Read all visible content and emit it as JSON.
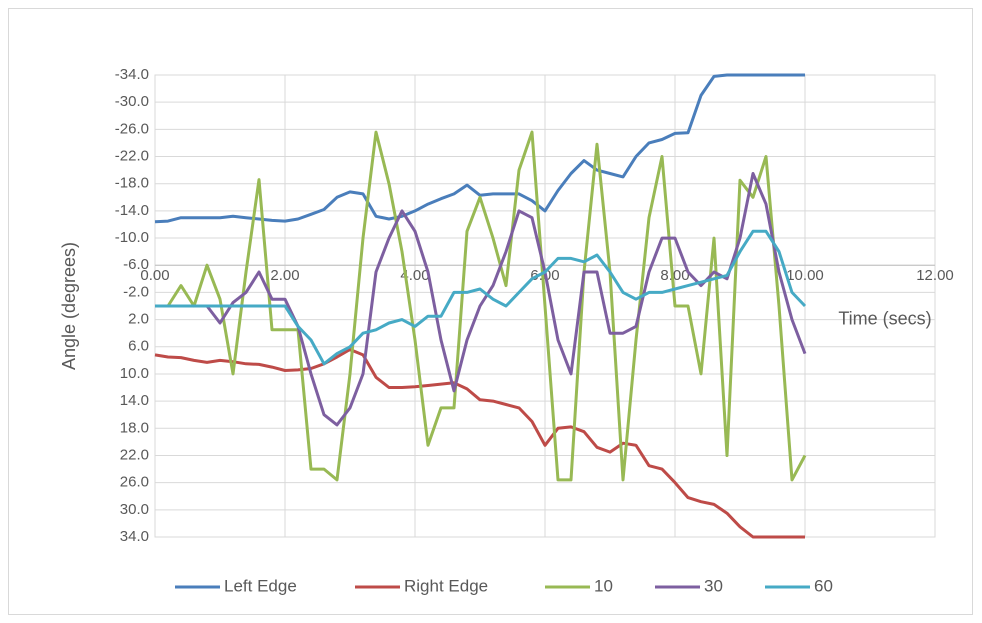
{
  "chart_data": {
    "type": "line",
    "y_label": "Angle (degrees)",
    "x_label": "Time (secs)",
    "x": [
      0,
      0.2,
      0.4,
      0.6,
      0.8,
      1,
      1.2,
      1.4,
      1.6,
      1.8,
      2,
      2.2,
      2.4,
      2.6,
      2.8,
      3,
      3.2,
      3.4,
      3.6,
      3.8,
      4,
      4.2,
      4.4,
      4.6,
      4.8,
      5,
      5.2,
      5.4,
      5.6,
      5.8,
      6,
      6.2,
      6.4,
      6.6,
      6.8,
      7,
      7.2,
      7.4,
      7.6,
      7.8,
      8,
      8.2,
      8.4,
      8.6,
      8.8,
      9,
      9.2,
      9.4,
      9.6,
      9.8,
      10
    ],
    "series": [
      {
        "name": "Left Edge",
        "color": "#4a7ebb",
        "values": [
          -12.4,
          -12.5,
          -13,
          -13,
          -13,
          -13,
          -13.2,
          -13,
          -12.8,
          -12.6,
          -12.5,
          -12.8,
          -13.5,
          -14.2,
          -16,
          -16.8,
          -16.5,
          -13.2,
          -12.8,
          -13.2,
          -14,
          -15,
          -15.8,
          -16.5,
          -17.8,
          -16.3,
          -16.5,
          -16.5,
          -16.5,
          -15.5,
          -14,
          -17,
          -19.5,
          -21.4,
          -20,
          -19.5,
          -19,
          -22,
          -24,
          -24.5,
          -25.4,
          -25.5,
          -31,
          -33.8,
          -34,
          -34,
          -34,
          -34,
          -34,
          -34,
          -34
        ]
      },
      {
        "name": "Right Edge",
        "color": "#be4b48",
        "values": [
          7.2,
          7.5,
          7.6,
          8,
          8.3,
          8,
          8.2,
          8.5,
          8.6,
          9,
          9.5,
          9.4,
          9.2,
          8.5,
          7.5,
          6.4,
          7.2,
          10.5,
          12,
          12,
          11.9,
          11.7,
          11.5,
          11.3,
          12.2,
          13.8,
          14,
          14.5,
          15,
          17,
          20.5,
          18,
          17.8,
          18.5,
          20.8,
          21.5,
          20.2,
          20.5,
          23.5,
          24,
          26,
          28.2,
          28.8,
          29.2,
          30.5,
          32.5,
          34,
          34,
          34,
          34,
          34
        ]
      },
      {
        "name": "10",
        "color": "#98b954",
        "values": [
          0,
          0,
          -3,
          0,
          -6,
          -1,
          10,
          -5,
          -18.6,
          3.5,
          3.5,
          3.5,
          24,
          24,
          25.6,
          10,
          -10,
          -25.6,
          -18,
          -8,
          5,
          20.5,
          15,
          15,
          -11,
          -16,
          -10,
          -3,
          -20,
          -25.6,
          0,
          25.6,
          25.6,
          -5,
          -23.8,
          -5,
          25.6,
          5,
          -13,
          -22,
          0,
          0,
          10,
          -10,
          22,
          -18.5,
          -16,
          -22,
          0,
          25.6,
          22
        ]
      },
      {
        "name": "30",
        "color": "#7d5fa0",
        "values": [
          0,
          0,
          0,
          0,
          0,
          2.5,
          -0.5,
          -2,
          -5,
          -1,
          -1,
          3,
          10,
          16,
          17.5,
          15,
          10,
          -5,
          -10,
          -14,
          -11,
          -5,
          5,
          12.5,
          5,
          0,
          -3,
          -8,
          -14,
          -13,
          -5,
          5,
          10,
          -5,
          -5,
          4,
          4,
          3,
          -5,
          -10,
          -10,
          -5,
          -3,
          -5,
          -4,
          -10,
          -19.5,
          -15,
          -5,
          2,
          7
        ]
      },
      {
        "name": "60",
        "color": "#46aac5",
        "values": [
          0,
          0,
          0,
          0,
          0,
          0,
          0,
          0,
          0,
          0,
          0,
          3,
          5,
          8.5,
          7,
          6,
          4,
          3.5,
          2.5,
          2,
          3,
          1.5,
          1.5,
          -2,
          -2,
          -2.5,
          -1,
          0,
          -2,
          -4,
          -5,
          -7,
          -7,
          -6.5,
          -7.5,
          -5,
          -2,
          -1,
          -2,
          -2,
          -2.5,
          -3,
          -3.5,
          -4,
          -4.5,
          -8,
          -11,
          -11,
          -8,
          -2,
          0
        ]
      }
    ],
    "xlim": [
      0,
      12
    ],
    "xticks": [
      {
        "value": 0,
        "label": "0.00"
      },
      {
        "value": 2,
        "label": "2.00"
      },
      {
        "value": 4,
        "label": "4.00"
      },
      {
        "value": 6,
        "label": "6.00"
      },
      {
        "value": 8,
        "label": "8.00"
      },
      {
        "value": 10,
        "label": "10.00"
      },
      {
        "value": 12,
        "label": "12.00"
      }
    ],
    "ylim": [
      -34,
      34
    ],
    "y_reversed": true,
    "x_axis_at": -6,
    "yticks": [
      {
        "value": -34,
        "label": "-34.0"
      },
      {
        "value": -30,
        "label": "-30.0"
      },
      {
        "value": -26,
        "label": "-26.0"
      },
      {
        "value": -22,
        "label": "-22.0"
      },
      {
        "value": -18,
        "label": "-18.0"
      },
      {
        "value": -14,
        "label": "-14.0"
      },
      {
        "value": -10,
        "label": "-10.0"
      },
      {
        "value": -6,
        "label": "-6.0"
      },
      {
        "value": -2,
        "label": "-2.0"
      },
      {
        "value": 2,
        "label": "2.0"
      },
      {
        "value": 6,
        "label": "6.0"
      },
      {
        "value": 10,
        "label": "10.0"
      },
      {
        "value": 14,
        "label": "14.0"
      },
      {
        "value": 18,
        "label": "18.0"
      },
      {
        "value": 22,
        "label": "22.0"
      },
      {
        "value": 26,
        "label": "26.0"
      },
      {
        "value": 30,
        "label": "30.0"
      },
      {
        "value": 34,
        "label": "34.0"
      }
    ],
    "grid": true,
    "legend": "bottom"
  }
}
